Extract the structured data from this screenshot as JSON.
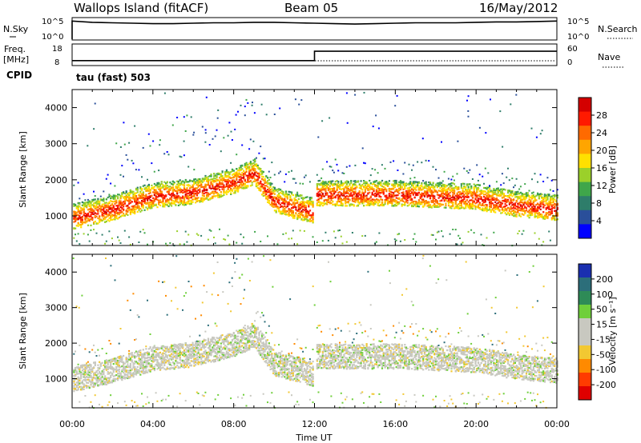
{
  "header": {
    "station": "Wallops Island (fitACF)",
    "beam": "Beam 05",
    "date": "16/May/2012"
  },
  "strip_panels": {
    "nsky": {
      "left_label": "N.Sky",
      "left_ticks": [
        "10^5",
        "10^0"
      ],
      "right_label": "N.Search",
      "right_ticks": [
        "10^5",
        "10^0"
      ]
    },
    "freq": {
      "left_label_line1": "Freq.",
      "left_label_line2": "[MHz]",
      "left_ticks": [
        "18",
        "8"
      ],
      "right_label": "Nave",
      "right_ticks": [
        "60",
        "0"
      ]
    },
    "cpid": {
      "label": "CPID",
      "value": "tau (fast) 503"
    }
  },
  "colorbars": {
    "power": {
      "label": "Power [dB]",
      "ticks": [
        "28",
        "24",
        "20",
        "16",
        "12",
        "8",
        "4"
      ],
      "colors": [
        "#d40000",
        "#ff1a00",
        "#ff6a00",
        "#ffa500",
        "#ffe000",
        "#9bd02a",
        "#3fa64a",
        "#2e7d6a",
        "#2a4f9a",
        "#0000ff"
      ]
    },
    "velocity": {
      "label": "Velocity [m s⁻¹]",
      "ticks": [
        "200",
        "100",
        "50",
        "15",
        "-15",
        "-50",
        "-100",
        "-200"
      ],
      "colors": [
        "#1a2fb0",
        "#2c6e7a",
        "#2e8b57",
        "#6fcf3a",
        "#c8c8c0",
        "#c8c8c0",
        "#f2c832",
        "#ff8a00",
        "#ff3b00",
        "#e00000"
      ]
    }
  },
  "chart_data": [
    {
      "type": "line",
      "name": "nsky-strip",
      "x": [
        0,
        1,
        2,
        3,
        4,
        5,
        6,
        7,
        8,
        9,
        10,
        11,
        12,
        13,
        14,
        15,
        16,
        17,
        18,
        19,
        20,
        21,
        22,
        23,
        24
      ],
      "log_values": [
        4.2,
        3.9,
        3.8,
        3.7,
        3.6,
        3.6,
        3.7,
        3.8,
        3.8,
        3.9,
        3.9,
        3.8,
        3.7,
        3.6,
        3.5,
        3.6,
        3.7,
        3.8,
        3.8,
        3.8,
        3.9,
        4.0,
        4.0,
        4.1,
        4.2
      ],
      "ylim": [
        0,
        5
      ]
    },
    {
      "type": "line",
      "name": "freq-strip",
      "x": [
        0,
        12,
        12,
        24
      ],
      "freq_mhz": [
        10,
        10,
        14.5,
        14.5
      ],
      "ylim": [
        8,
        18
      ]
    },
    {
      "type": "heatmap",
      "name": "power-panel",
      "xlabel": "",
      "ylabel": "Slant Range [km]",
      "xlim": [
        0,
        24
      ],
      "ylim": [
        180,
        4500
      ],
      "yticks": [
        1000,
        2000,
        3000,
        4000
      ],
      "band_center_km": [
        [
          0,
          850
        ],
        [
          2,
          1100
        ],
        [
          4,
          1450
        ],
        [
          6,
          1550
        ],
        [
          8,
          1850
        ],
        [
          9,
          2100
        ],
        [
          10,
          1300
        ],
        [
          12,
          1000
        ],
        [
          12.05,
          1500
        ],
        [
          16,
          1500
        ],
        [
          20,
          1400
        ],
        [
          22,
          1200
        ],
        [
          24,
          1100
        ]
      ],
      "clim_db": [
        0,
        32
      ]
    },
    {
      "type": "heatmap",
      "name": "velocity-panel",
      "xlabel": "Time UT",
      "ylabel": "Slant Range [km]",
      "xlim": [
        0,
        24
      ],
      "ylim": [
        180,
        4500
      ],
      "xticks": [
        "00:00",
        "04:00",
        "08:00",
        "12:00",
        "16:00",
        "20:00",
        "00:00"
      ],
      "yticks": [
        1000,
        2000,
        3000,
        4000
      ],
      "clim_ms": [
        -250,
        250
      ]
    }
  ]
}
